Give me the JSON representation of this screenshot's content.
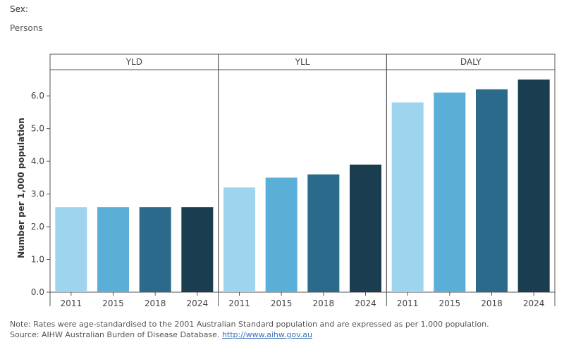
{
  "filter": {
    "label": "Sex:",
    "value": "Persons"
  },
  "notes": {
    "note": "Note: Rates were age-standardised to the 2001 Australian Standard population and are expressed as per 1,000 population.",
    "source_prefix": "Source: AIHW Australian Burden of Disease Database. ",
    "source_link": "http://www.aihw.gov.au"
  },
  "colors": {
    "2011": "#9fd4ef",
    "2015": "#5aafd9",
    "2018": "#2c6a8c",
    "2024": "#1a3e4f"
  },
  "chart_data": {
    "type": "bar",
    "ylabel": "Number per 1,000 population",
    "ylim": [
      0,
      6.8
    ],
    "yticks": [
      0.0,
      1.0,
      2.0,
      3.0,
      4.0,
      5.0,
      6.0
    ],
    "ytick_labels": [
      "0.0",
      "1.0",
      "2.0",
      "3.0",
      "4.0",
      "5.0",
      "6.0"
    ],
    "grid": false,
    "categories": [
      "2011",
      "2015",
      "2018",
      "2024"
    ],
    "panels": [
      {
        "name": "YLD",
        "values": [
          2.6,
          2.6,
          2.6,
          2.6
        ]
      },
      {
        "name": "YLL",
        "values": [
          3.2,
          3.5,
          3.6,
          3.9
        ]
      },
      {
        "name": "DALY",
        "values": [
          5.8,
          6.1,
          6.2,
          6.5
        ]
      }
    ]
  }
}
